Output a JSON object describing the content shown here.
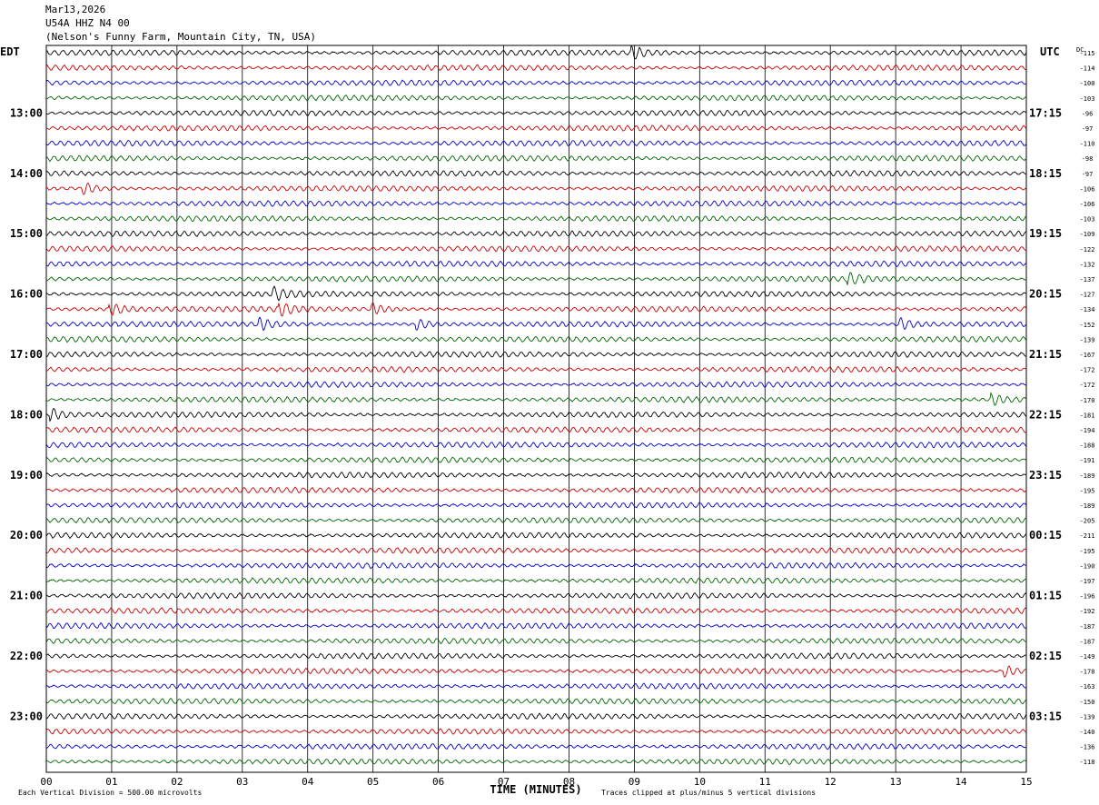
{
  "header": {
    "date": "Mar13,2026",
    "station": "U54A HHZ N4 00",
    "location": "(Nelson's Funny Farm, Mountain City, TN, USA)"
  },
  "chart_data": {
    "type": "line",
    "subtype": "helicorder",
    "left_axis_label": "EDT",
    "right_axis_label": "UTC",
    "right_column_label": "DC",
    "xlabel": "TIME (MINUTES)",
    "x_ticks": [
      "00",
      "01",
      "02",
      "03",
      "04",
      "05",
      "06",
      "07",
      "08",
      "09",
      "10",
      "11",
      "12",
      "13",
      "14",
      "15"
    ],
    "x_range": [
      0,
      15
    ],
    "rows": 48,
    "row_minutes": 15,
    "trace_colors": [
      "#000000",
      "#cc0000",
      "#0000cc",
      "#006600"
    ],
    "left_hour_labels": [
      "13:00",
      "14:00",
      "15:00",
      "16:00",
      "17:00",
      "18:00",
      "19:00",
      "20:00",
      "21:00",
      "22:00",
      "23:00"
    ],
    "right_hour_labels": [
      "17:15",
      "18:15",
      "19:15",
      "20:15",
      "21:15",
      "22:15",
      "23:15",
      "00:15",
      "01:15",
      "02:15",
      "03:15"
    ],
    "dc_offsets": [
      "-115",
      "-114",
      "-100",
      "-103",
      "-96",
      "-97",
      "-110",
      "-98",
      "-97",
      "-106",
      "-106",
      "-103",
      "-109",
      "-122",
      "-132",
      "-137",
      "-127",
      "-134",
      "-152",
      "-139",
      "-167",
      "-172",
      "-172",
      "-170",
      "-181",
      "-194",
      "-188",
      "-191",
      "-189",
      "-195",
      "-189",
      "-205",
      "-211",
      "-195",
      "-190",
      "-197",
      "-196",
      "-192",
      "-187",
      "-187",
      "-149",
      "-178",
      "-163",
      "-150",
      "-139",
      "-140",
      "-136",
      "-118"
    ],
    "events": [
      {
        "row": 16,
        "minute": 3.5
      },
      {
        "row": 17,
        "minute": 1.0
      },
      {
        "row": 17,
        "minute": 3.6
      },
      {
        "row": 17,
        "minute": 5.0
      },
      {
        "row": 18,
        "minute": 3.3
      },
      {
        "row": 18,
        "minute": 5.7
      },
      {
        "row": 18,
        "minute": 13.1
      },
      {
        "row": 0,
        "minute": 9.0
      },
      {
        "row": 9,
        "minute": 0.6
      },
      {
        "row": 24,
        "minute": 0.1
      },
      {
        "row": 23,
        "minute": 14.5
      },
      {
        "row": 15,
        "minute": 12.3
      },
      {
        "row": 41,
        "minute": 14.7
      }
    ],
    "footer_left": "Each Vertical Division =  500.00 microvolts",
    "footer_right": "Traces clipped at plus/minus 5 vertical divisions"
  }
}
